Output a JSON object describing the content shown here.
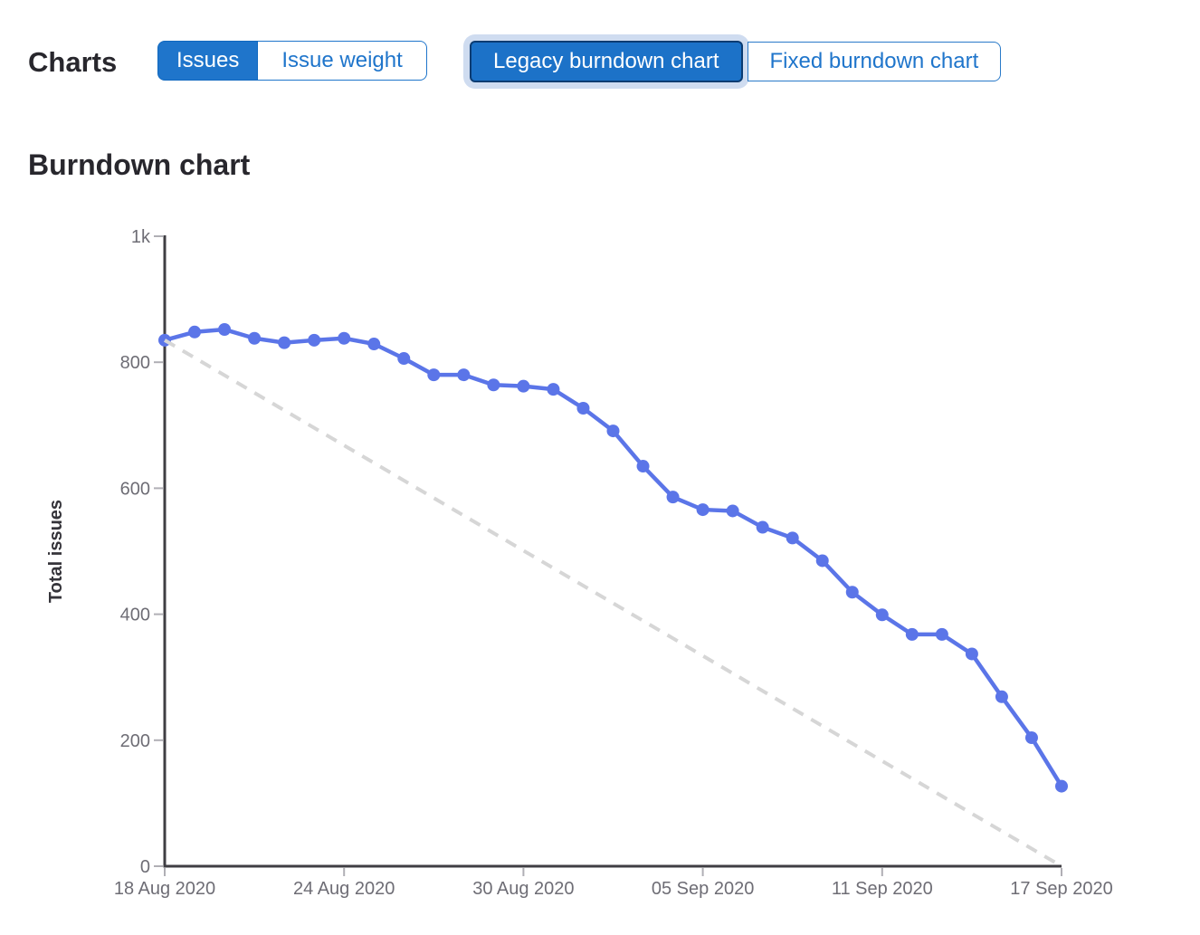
{
  "toolbar": {
    "charts_label": "Charts",
    "metric_buttons": [
      {
        "label": "Issues",
        "selected": true
      },
      {
        "label": "Issue weight",
        "selected": false
      }
    ],
    "type_buttons": [
      {
        "label": "Legacy burndown chart",
        "selected": true,
        "focused": true
      },
      {
        "label": "Fixed burndown chart",
        "selected": false
      }
    ]
  },
  "section": {
    "title": "Burndown chart"
  },
  "chart_data": {
    "type": "line",
    "title": "Burndown chart",
    "xlabel": "",
    "ylabel": "Total issues",
    "ylim": [
      0,
      1000
    ],
    "y_ticks": [
      0,
      200,
      400,
      600,
      800,
      1000
    ],
    "y_tick_labels": [
      "0",
      "200",
      "400",
      "600",
      "800",
      "1k"
    ],
    "x_range_days": [
      0,
      30
    ],
    "x_tick_days": [
      0,
      6,
      12,
      18,
      24,
      30
    ],
    "x_tick_labels": [
      "18 Aug 2020",
      "24 Aug 2020",
      "30 Aug 2020",
      "05 Sep 2020",
      "11 Sep 2020",
      "17 Sep 2020"
    ],
    "grid": false,
    "legend": "none",
    "series": [
      {
        "name": "total-issues",
        "kind": "line",
        "marker": "circle",
        "color": "#5b75e8",
        "values": [
          835,
          848,
          852,
          838,
          831,
          835,
          838,
          829,
          806,
          780,
          780,
          764,
          762,
          757,
          727,
          691,
          635,
          586,
          566,
          564,
          538,
          521,
          485,
          435,
          399,
          368,
          368,
          337,
          269,
          204,
          127
        ]
      },
      {
        "name": "ideal-guideline",
        "kind": "dashed-line",
        "color": "#d6d6d6",
        "x_days": [
          0,
          30
        ],
        "values": [
          835,
          0
        ]
      }
    ]
  },
  "colors": {
    "accent_blue": "#1f75cb",
    "accent_blue_border": "#1068bf",
    "focus_border": "#0b3c72",
    "focus_halo": "#cfdcf0",
    "line_blue": "#5b75e8",
    "guideline_gray": "#d6d6d6",
    "axis_dark": "#3f3e43",
    "tick_mark_gray": "#b0afb5",
    "tick_text_gray": "#6e6d75",
    "heading_text": "#28272d"
  }
}
